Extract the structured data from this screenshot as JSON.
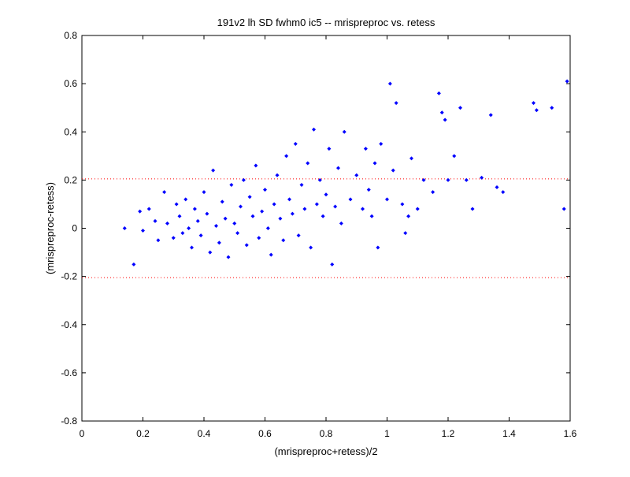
{
  "chart_data": {
    "type": "scatter",
    "title": "191v2 lh SD fwhm0 ic5 -- mrispreproc vs. retess",
    "xlabel": "(mrispreproc+retess)/2",
    "ylabel": "(mrispreproc-retess)",
    "xlim": [
      0,
      1.6
    ],
    "ylim": [
      -0.8,
      0.8
    ],
    "xticks": [
      0,
      0.2,
      0.4,
      0.6,
      0.8,
      1,
      1.2,
      1.4,
      1.6
    ],
    "yticks": [
      -0.8,
      -0.6,
      -0.4,
      -0.2,
      0,
      0.2,
      0.4,
      0.6,
      0.8
    ],
    "grid": false,
    "marker_color": "#0000ff",
    "reference_line_color": "#ff0000",
    "reference_lines": [
      0.205,
      -0.205
    ],
    "series": [
      {
        "points": [
          [
            0.14,
            0.0
          ],
          [
            0.17,
            -0.15
          ],
          [
            0.19,
            0.07
          ],
          [
            0.2,
            -0.01
          ],
          [
            0.22,
            0.08
          ],
          [
            0.24,
            0.03
          ],
          [
            0.25,
            -0.05
          ],
          [
            0.27,
            0.15
          ],
          [
            0.28,
            0.02
          ],
          [
            0.3,
            -0.04
          ],
          [
            0.31,
            0.1
          ],
          [
            0.32,
            0.05
          ],
          [
            0.33,
            -0.02
          ],
          [
            0.34,
            0.12
          ],
          [
            0.35,
            0.0
          ],
          [
            0.36,
            -0.08
          ],
          [
            0.37,
            0.08
          ],
          [
            0.38,
            0.03
          ],
          [
            0.39,
            -0.03
          ],
          [
            0.4,
            0.15
          ],
          [
            0.41,
            0.06
          ],
          [
            0.42,
            -0.1
          ],
          [
            0.43,
            0.24
          ],
          [
            0.44,
            0.01
          ],
          [
            0.45,
            -0.06
          ],
          [
            0.46,
            0.11
          ],
          [
            0.47,
            0.04
          ],
          [
            0.48,
            -0.12
          ],
          [
            0.49,
            0.18
          ],
          [
            0.5,
            0.02
          ],
          [
            0.51,
            -0.02
          ],
          [
            0.52,
            0.09
          ],
          [
            0.53,
            0.2
          ],
          [
            0.54,
            -0.07
          ],
          [
            0.55,
            0.13
          ],
          [
            0.56,
            0.05
          ],
          [
            0.57,
            0.26
          ],
          [
            0.58,
            -0.04
          ],
          [
            0.59,
            0.07
          ],
          [
            0.6,
            0.16
          ],
          [
            0.61,
            0.0
          ],
          [
            0.62,
            -0.11
          ],
          [
            0.63,
            0.1
          ],
          [
            0.64,
            0.22
          ],
          [
            0.65,
            0.04
          ],
          [
            0.66,
            -0.05
          ],
          [
            0.67,
            0.3
          ],
          [
            0.68,
            0.12
          ],
          [
            0.69,
            0.06
          ],
          [
            0.7,
            0.35
          ],
          [
            0.71,
            -0.03
          ],
          [
            0.72,
            0.18
          ],
          [
            0.73,
            0.08
          ],
          [
            0.74,
            0.27
          ],
          [
            0.75,
            -0.08
          ],
          [
            0.76,
            0.41
          ],
          [
            0.77,
            0.1
          ],
          [
            0.78,
            0.2
          ],
          [
            0.79,
            0.05
          ],
          [
            0.8,
            0.14
          ],
          [
            0.81,
            0.33
          ],
          [
            0.82,
            -0.15
          ],
          [
            0.83,
            0.09
          ],
          [
            0.84,
            0.25
          ],
          [
            0.85,
            0.02
          ],
          [
            0.86,
            0.4
          ],
          [
            0.88,
            0.12
          ],
          [
            0.9,
            0.22
          ],
          [
            0.92,
            0.08
          ],
          [
            0.93,
            0.33
          ],
          [
            0.94,
            0.16
          ],
          [
            0.95,
            0.05
          ],
          [
            0.96,
            0.27
          ],
          [
            0.97,
            -0.08
          ],
          [
            0.98,
            0.35
          ],
          [
            1.0,
            0.12
          ],
          [
            1.01,
            0.6
          ],
          [
            1.02,
            0.24
          ],
          [
            1.03,
            0.52
          ],
          [
            1.05,
            0.1
          ],
          [
            1.06,
            -0.02
          ],
          [
            1.07,
            0.05
          ],
          [
            1.08,
            0.29
          ],
          [
            1.1,
            0.08
          ],
          [
            1.12,
            0.2
          ],
          [
            1.15,
            0.15
          ],
          [
            1.17,
            0.56
          ],
          [
            1.18,
            0.48
          ],
          [
            1.19,
            0.45
          ],
          [
            1.2,
            0.2
          ],
          [
            1.22,
            0.3
          ],
          [
            1.24,
            0.5
          ],
          [
            1.26,
            0.2
          ],
          [
            1.28,
            0.08
          ],
          [
            1.31,
            0.21
          ],
          [
            1.34,
            0.47
          ],
          [
            1.36,
            0.17
          ],
          [
            1.38,
            0.15
          ],
          [
            1.48,
            0.52
          ],
          [
            1.49,
            0.49
          ],
          [
            1.54,
            0.5
          ],
          [
            1.58,
            0.08
          ],
          [
            1.59,
            0.61
          ]
        ]
      }
    ]
  }
}
